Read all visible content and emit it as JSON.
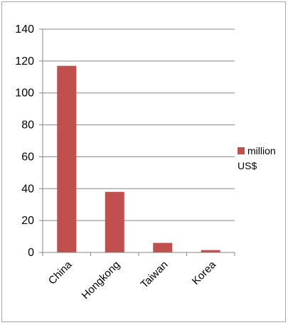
{
  "chart_data": {
    "type": "bar",
    "title": "",
    "xlabel": "",
    "ylabel": "",
    "categories": [
      "China",
      "Hongkong",
      "Taiwan",
      "Korea"
    ],
    "series": [
      {
        "name": "million US$",
        "values": [
          117,
          38,
          6,
          1.5
        ],
        "color": "#c0504d"
      }
    ],
    "ylim": [
      0,
      140
    ],
    "yticks": [
      0,
      20,
      40,
      60,
      80,
      100,
      120,
      140
    ],
    "grid": true,
    "legend_position": "right",
    "legend_lines": [
      "million",
      "US$"
    ]
  }
}
